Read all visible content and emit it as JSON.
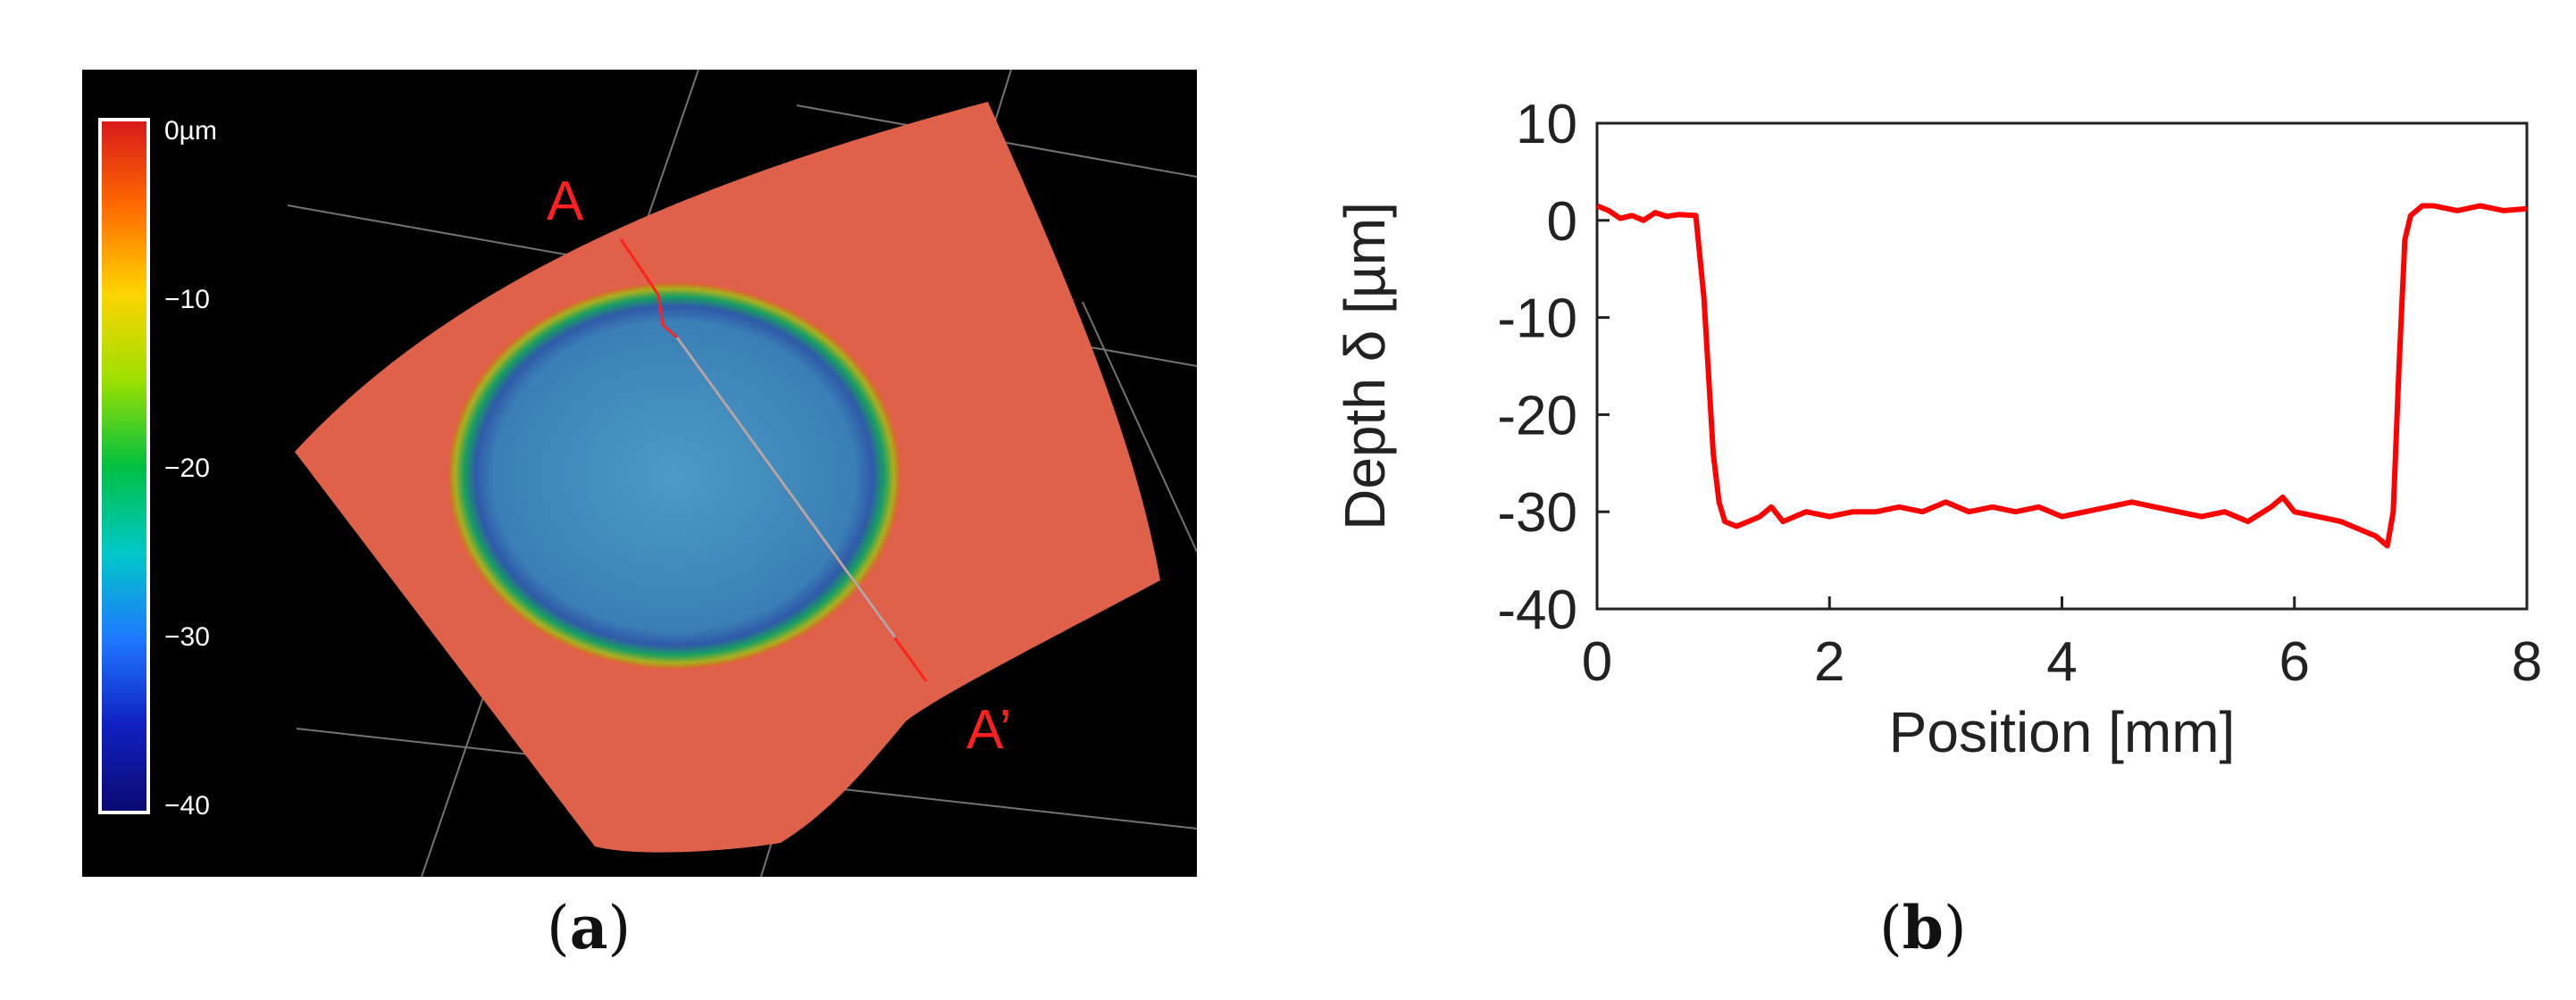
{
  "panels": {
    "a": {
      "caption_open": "(",
      "caption_letter": "a",
      "caption_close": ")",
      "colorbar": {
        "top_label": "0µm",
        "ticks": [
          "0µm",
          "−10",
          "−20",
          "−30",
          "−40"
        ],
        "tick_values": [
          0,
          -10,
          -20,
          -30,
          -40
        ],
        "colors": [
          "#d7191c",
          "#ff6a00",
          "#ffd400",
          "#9ee000",
          "#00c040",
          "#00c8c8",
          "#1e78ff",
          "#1020c0",
          "#0a0a70"
        ]
      },
      "section_start_label": "A",
      "section_end_label": "A’",
      "colors": {
        "background": "#000000",
        "surface": "#e0614a",
        "crater": "#3f86b8",
        "section_line": "#ff2020"
      }
    },
    "b": {
      "caption_open": "(",
      "caption_letter": "b",
      "caption_close": ")"
    }
  },
  "chart_data": {
    "type": "line",
    "title": "",
    "xlabel": "Position [mm]",
    "ylabel": "Depth δ [µm]",
    "xlim": [
      0,
      8
    ],
    "ylim": [
      -40,
      10
    ],
    "xticks": [
      0,
      2,
      4,
      6,
      8
    ],
    "yticks": [
      -40,
      -30,
      -20,
      -10,
      0,
      10
    ],
    "grid": false,
    "color": "#ff0000",
    "series": [
      {
        "x": [
          0,
          0.1,
          0.2,
          0.3,
          0.4,
          0.5,
          0.6,
          0.7,
          0.85,
          0.92,
          1.0,
          1.05,
          1.1,
          1.2,
          1.3,
          1.4,
          1.5,
          1.6,
          1.8,
          2.0,
          2.2,
          2.4,
          2.6,
          2.8,
          3.0,
          3.2,
          3.4,
          3.6,
          3.8,
          4.0,
          4.2,
          4.4,
          4.6,
          4.8,
          5.0,
          5.2,
          5.4,
          5.6,
          5.8,
          5.9,
          6.0,
          6.2,
          6.4,
          6.6,
          6.7,
          6.8,
          6.85,
          6.9,
          6.95,
          7.0,
          7.1,
          7.2,
          7.4,
          7.6,
          7.8,
          8.0
        ],
        "y": [
          1.5,
          1.0,
          0.2,
          0.5,
          0.0,
          0.8,
          0.4,
          0.6,
          0.5,
          -8,
          -24,
          -29,
          -31,
          -31.5,
          -31,
          -30.5,
          -29.5,
          -31,
          -30,
          -30.5,
          -30,
          -30,
          -29.5,
          -30,
          -29,
          -30,
          -29.5,
          -30,
          -29.5,
          -30.5,
          -30,
          -29.5,
          -29,
          -29.5,
          -30,
          -30.5,
          -30,
          -31,
          -29.5,
          -28.5,
          -30,
          -30.5,
          -31,
          -32,
          -32.5,
          -33.5,
          -30,
          -15,
          -2,
          0.5,
          1.5,
          1.5,
          1.0,
          1.5,
          1.0,
          1.2
        ]
      }
    ]
  }
}
